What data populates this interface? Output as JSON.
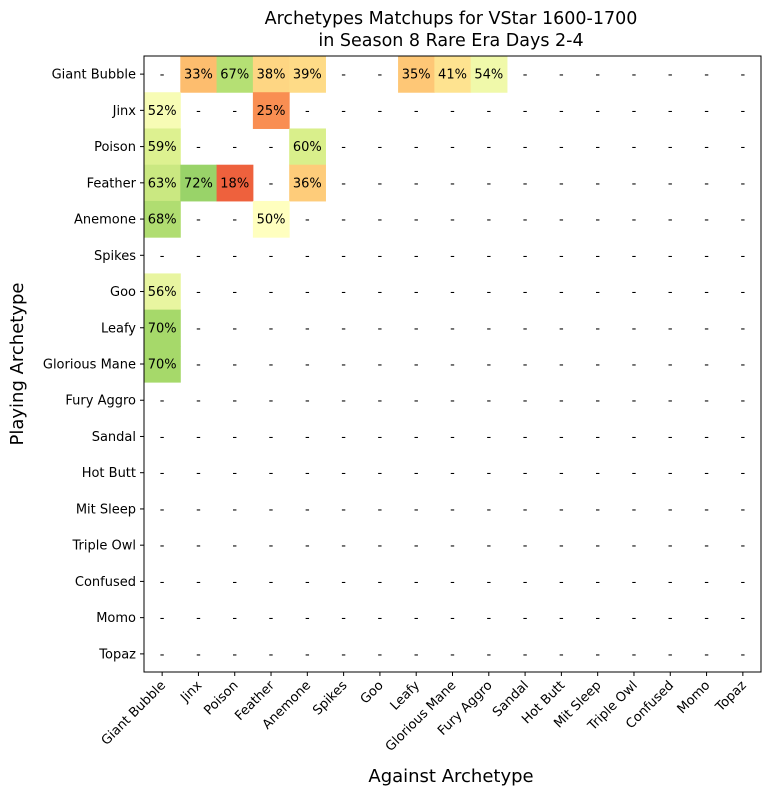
{
  "chart_data": {
    "type": "heatmap",
    "title_line1": "Archetypes Matchups for VStar 1600-1700",
    "title_line2": "in Season 8 Rare Era Days 2-4",
    "xlabel": "Against Archetype",
    "ylabel": "Playing Archetype",
    "missing_label": "-",
    "value_suffix": "%",
    "rows": [
      "Giant Bubble",
      "Jinx",
      "Poison",
      "Feather",
      "Anemone",
      "Spikes",
      "Goo",
      "Leafy",
      "Glorious Mane",
      "Fury Aggro",
      "Sandal",
      "Hot Butt",
      "Mit Sleep",
      "Triple Owl",
      "Confused",
      "Momo",
      "Topaz"
    ],
    "columns": [
      "Giant Bubble",
      "Jinx",
      "Poison",
      "Feather",
      "Anemone",
      "Spikes",
      "Goo",
      "Leafy",
      "Glorious Mane",
      "Fury Aggro",
      "Sandal",
      "Hot Butt",
      "Mit Sleep",
      "Triple Owl",
      "Confused",
      "Momo",
      "Topaz"
    ],
    "values": [
      [
        null,
        33,
        67,
        38,
        39,
        null,
        null,
        35,
        41,
        54,
        null,
        null,
        null,
        null,
        null,
        null,
        null
      ],
      [
        52,
        null,
        null,
        25,
        null,
        null,
        null,
        null,
        null,
        null,
        null,
        null,
        null,
        null,
        null,
        null,
        null
      ],
      [
        59,
        null,
        null,
        null,
        60,
        null,
        null,
        null,
        null,
        null,
        null,
        null,
        null,
        null,
        null,
        null,
        null
      ],
      [
        63,
        72,
        18,
        null,
        36,
        null,
        null,
        null,
        null,
        null,
        null,
        null,
        null,
        null,
        null,
        null,
        null
      ],
      [
        68,
        null,
        null,
        50,
        null,
        null,
        null,
        null,
        null,
        null,
        null,
        null,
        null,
        null,
        null,
        null,
        null
      ],
      [
        null,
        null,
        null,
        null,
        null,
        null,
        null,
        null,
        null,
        null,
        null,
        null,
        null,
        null,
        null,
        null,
        null
      ],
      [
        56,
        null,
        null,
        null,
        null,
        null,
        null,
        null,
        null,
        null,
        null,
        null,
        null,
        null,
        null,
        null,
        null
      ],
      [
        70,
        null,
        null,
        null,
        null,
        null,
        null,
        null,
        null,
        null,
        null,
        null,
        null,
        null,
        null,
        null,
        null
      ],
      [
        70,
        null,
        null,
        null,
        null,
        null,
        null,
        null,
        null,
        null,
        null,
        null,
        null,
        null,
        null,
        null,
        null
      ],
      [
        null,
        null,
        null,
        null,
        null,
        null,
        null,
        null,
        null,
        null,
        null,
        null,
        null,
        null,
        null,
        null,
        null
      ],
      [
        null,
        null,
        null,
        null,
        null,
        null,
        null,
        null,
        null,
        null,
        null,
        null,
        null,
        null,
        null,
        null,
        null
      ],
      [
        null,
        null,
        null,
        null,
        null,
        null,
        null,
        null,
        null,
        null,
        null,
        null,
        null,
        null,
        null,
        null,
        null
      ],
      [
        null,
        null,
        null,
        null,
        null,
        null,
        null,
        null,
        null,
        null,
        null,
        null,
        null,
        null,
        null,
        null,
        null
      ],
      [
        null,
        null,
        null,
        null,
        null,
        null,
        null,
        null,
        null,
        null,
        null,
        null,
        null,
        null,
        null,
        null,
        null
      ],
      [
        null,
        null,
        null,
        null,
        null,
        null,
        null,
        null,
        null,
        null,
        null,
        null,
        null,
        null,
        null,
        null,
        null
      ],
      [
        null,
        null,
        null,
        null,
        null,
        null,
        null,
        null,
        null,
        null,
        null,
        null,
        null,
        null,
        null,
        null,
        null
      ],
      [
        null,
        null,
        null,
        null,
        null,
        null,
        null,
        null,
        null,
        null,
        null,
        null,
        null,
        null,
        null,
        null,
        null
      ]
    ],
    "colormap": "RdYlGn",
    "value_range": [
      0,
      100
    ],
    "grid": false,
    "colors": {
      "text": "#000000",
      "axis": "#000000",
      "background": "#ffffff"
    }
  }
}
